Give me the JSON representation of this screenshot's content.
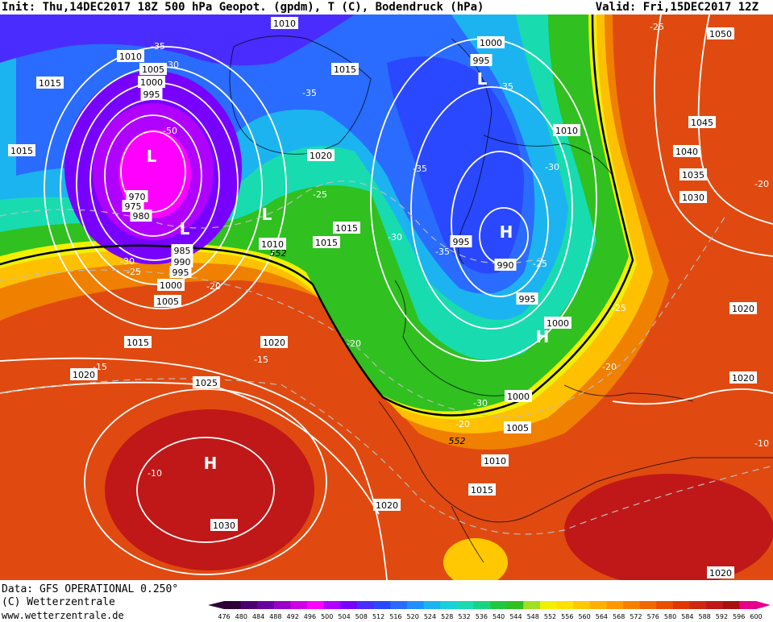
{
  "header": {
    "left_text": "Init: Thu,14DEC2017 18Z 500 hPa Geopot. (gpdm), T (C), Bodendruck (hPa)",
    "right_text": "Valid: Fri,15DEC2017 12Z"
  },
  "footer": {
    "data_source": "Data: GFS OPERATIONAL 0.250°",
    "copyright": "(C) Wetterzentrale",
    "website": "www.wetterzentrale.de"
  },
  "colorbar": {
    "ticks": [
      "476",
      "480",
      "484",
      "488",
      "492",
      "496",
      "500",
      "504",
      "508",
      "512",
      "516",
      "520",
      "524",
      "528",
      "532",
      "536",
      "540",
      "544",
      "548",
      "552",
      "556",
      "560",
      "564",
      "568",
      "572",
      "576",
      "580",
      "584",
      "588",
      "592",
      "596",
      "600"
    ],
    "colors": [
      "#2e0038",
      "#4b0070",
      "#6a00a0",
      "#9a00c8",
      "#d000e6",
      "#ff00ff",
      "#b000ff",
      "#7800ff",
      "#4a2cff",
      "#2a48ff",
      "#2a6cff",
      "#2090ff",
      "#1cb4f0",
      "#18d0d8",
      "#18dcb0",
      "#18d480",
      "#20c840",
      "#30c020",
      "#a0e020",
      "#f0f000",
      "#ffe000",
      "#ffc800",
      "#ffb000",
      "#ff9800",
      "#f88000",
      "#f06800",
      "#e85000",
      "#e03800",
      "#d02810",
      "#c01818",
      "#a81010",
      "#e8008c"
    ]
  },
  "map_labels": {
    "pressure": [
      {
        "t": "1010"
      },
      {
        "t": "1005"
      },
      {
        "t": "1000"
      },
      {
        "t": "995"
      },
      {
        "t": "1015"
      },
      {
        "t": "1015"
      },
      {
        "t": "970"
      },
      {
        "t": "975"
      },
      {
        "t": "980"
      },
      {
        "t": "985"
      },
      {
        "t": "990"
      },
      {
        "t": "995"
      },
      {
        "t": "1000"
      },
      {
        "t": "1005"
      },
      {
        "t": "1010"
      },
      {
        "t": "1015"
      },
      {
        "t": "1015"
      },
      {
        "t": "1020"
      },
      {
        "t": "1020"
      },
      {
        "t": "1025"
      },
      {
        "t": "1030"
      },
      {
        "t": "1010"
      },
      {
        "t": "1015"
      },
      {
        "t": "1020"
      },
      {
        "t": "1000"
      },
      {
        "t": "995"
      },
      {
        "t": "1010"
      },
      {
        "t": "995"
      },
      {
        "t": "990"
      },
      {
        "t": "995"
      },
      {
        "t": "1000"
      },
      {
        "t": "1000"
      },
      {
        "t": "1005"
      },
      {
        "t": "1010"
      },
      {
        "t": "1015"
      },
      {
        "t": "1020"
      },
      {
        "t": "1015"
      },
      {
        "t": "1050"
      },
      {
        "t": "1045"
      },
      {
        "t": "1040"
      },
      {
        "t": "1035"
      },
      {
        "t": "1030"
      },
      {
        "t": "1020"
      },
      {
        "t": "1020"
      },
      {
        "t": "1020"
      }
    ],
    "temperature": [
      {
        "t": "-35"
      },
      {
        "t": "-30"
      },
      {
        "t": "-50"
      },
      {
        "t": "-30"
      },
      {
        "t": "-25"
      },
      {
        "t": "-20"
      },
      {
        "t": "-35"
      },
      {
        "t": "-25"
      },
      {
        "t": "-30"
      },
      {
        "t": "-35"
      },
      {
        "t": "-35"
      },
      {
        "t": "-30"
      },
      {
        "t": "-35"
      },
      {
        "t": "-20"
      },
      {
        "t": "-15"
      },
      {
        "t": "-15"
      },
      {
        "t": "-10"
      },
      {
        "t": "-20"
      },
      {
        "t": "-25"
      },
      {
        "t": "-30"
      },
      {
        "t": "-20"
      },
      {
        "t": "-25"
      },
      {
        "t": "-25"
      },
      {
        "t": "-20"
      },
      {
        "t": "-10"
      }
    ],
    "geopotential": [
      {
        "t": "552"
      },
      {
        "t": "552"
      }
    ],
    "centers": [
      {
        "t": "L"
      },
      {
        "t": "L"
      },
      {
        "t": "L"
      },
      {
        "t": "L"
      },
      {
        "t": "H"
      },
      {
        "t": "H"
      },
      {
        "t": "H"
      }
    ]
  }
}
